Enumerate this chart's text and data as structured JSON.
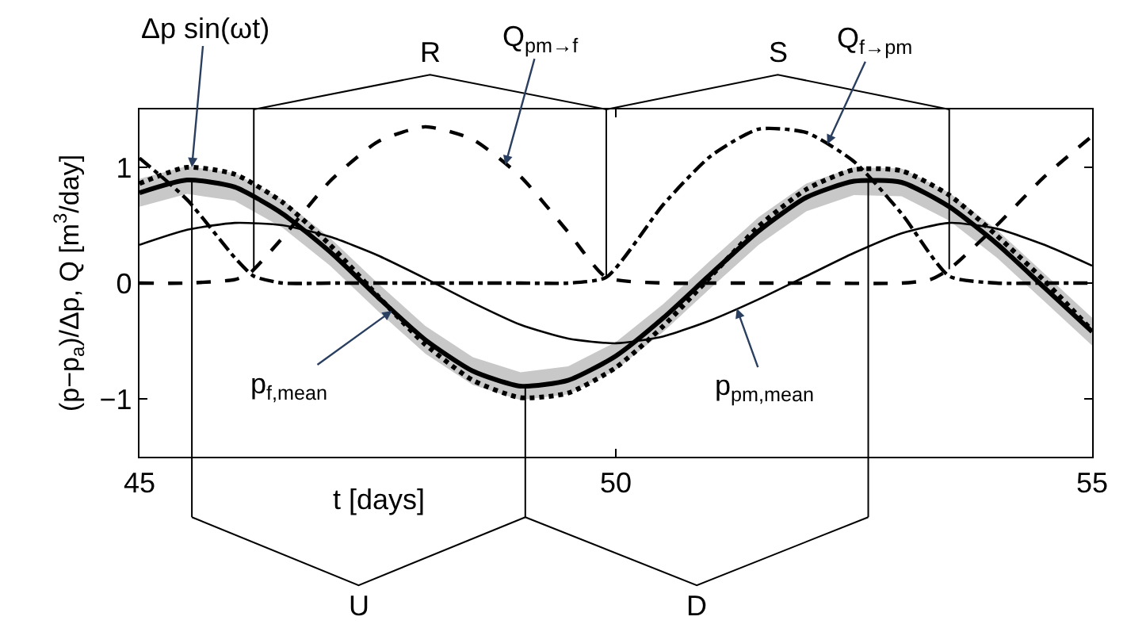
{
  "chart_data": {
    "type": "line",
    "xlabel": "t [days]",
    "ylabel": "(p−p$_{a}$)/Δp, Q [m$^{3}$/day]",
    "xlim": [
      45,
      55
    ],
    "ylim": [
      -1.5,
      1.5
    ],
    "xticks": [
      45,
      50,
      55
    ],
    "yticks": [
      -1,
      0,
      1
    ],
    "x": [
      45,
      45.5,
      46,
      46.5,
      47,
      47.5,
      48,
      48.5,
      49,
      49.5,
      50,
      50.5,
      51,
      51.5,
      52,
      52.5,
      53,
      53.5,
      54,
      54.5,
      55
    ],
    "series": [
      {
        "color": "#000000",
        "line_style": "dotted",
        "values": [
          0.86,
          1.0,
          0.94,
          0.7,
          0.33,
          -0.11,
          -0.53,
          -0.84,
          -0.99,
          -0.95,
          -0.73,
          -0.37,
          0.06,
          0.49,
          0.81,
          0.98,
          0.97,
          0.76,
          0.41,
          0.02,
          -0.41
        ]
      },
      {
        "color": "#000000",
        "line_style": "solid",
        "values": [
          0.78,
          0.89,
          0.83,
          0.6,
          0.27,
          -0.12,
          -0.49,
          -0.76,
          -0.89,
          -0.84,
          -0.63,
          -0.3,
          0.08,
          0.45,
          0.74,
          0.88,
          0.87,
          0.66,
          0.34,
          -0.04,
          -0.42
        ],
        "lower": [
          0.66,
          0.77,
          0.71,
          0.48,
          0.15,
          -0.24,
          -0.61,
          -0.88,
          -1.01,
          -0.96,
          -0.75,
          -0.42,
          -0.04,
          0.33,
          0.62,
          0.76,
          0.75,
          0.54,
          0.22,
          -0.16,
          -0.54
        ],
        "upper": [
          0.9,
          1.01,
          0.95,
          0.72,
          0.39,
          0.0,
          -0.37,
          -0.64,
          -0.77,
          -0.72,
          -0.51,
          -0.18,
          0.2,
          0.57,
          0.86,
          1.0,
          0.99,
          0.78,
          0.46,
          0.08,
          -0.3
        ]
      },
      {
        "color": "#000000",
        "line_style": "solid",
        "values": [
          0.33,
          0.46,
          0.52,
          0.5,
          0.4,
          0.24,
          0.04,
          -0.17,
          -0.36,
          -0.48,
          -0.52,
          -0.46,
          -0.32,
          -0.14,
          0.06,
          0.26,
          0.43,
          0.52,
          0.47,
          0.33,
          0.15
        ]
      },
      {
        "color": "#000000",
        "line_style": "dashed",
        "x": [
          45,
          45.5,
          46,
          46.15,
          46.5,
          47,
          47.5,
          48,
          48.5,
          49,
          49.5,
          49.9,
          50.5,
          51,
          52,
          53,
          53.3,
          53.5,
          54,
          54.5,
          55
        ],
        "values": [
          0,
          0,
          0.03,
          0.08,
          0.39,
          0.88,
          1.22,
          1.35,
          1.24,
          0.92,
          0.44,
          0.05,
          0,
          0,
          0,
          0,
          0.03,
          0.12,
          0.5,
          0.92,
          1.27
        ]
      },
      {
        "color": "#000000",
        "line_style": "dashdot",
        "x": [
          45,
          45.5,
          46,
          46.2,
          46.5,
          47,
          48,
          49,
          49.5,
          49.9,
          50.5,
          51,
          51.5,
          52,
          52.5,
          53,
          53.5,
          54,
          54.5,
          55
        ],
        "values": [
          1.08,
          0.72,
          0.22,
          0.06,
          0,
          0,
          0,
          0,
          0,
          0.05,
          0.68,
          1.1,
          1.33,
          1.3,
          1.05,
          0.6,
          0.06,
          0,
          0,
          0
        ]
      }
    ],
    "ref_lines": [
      {
        "axis": "x",
        "value": 46.2
      },
      {
        "axis": "x",
        "value": 49.9
      },
      {
        "axis": "x",
        "value": 53.5
      },
      {
        "axis": "x",
        "value": 45.55
      },
      {
        "axis": "x",
        "value": 49.05
      },
      {
        "axis": "x",
        "value": 52.65
      }
    ],
    "annotations": [
      {
        "text": "Δp sin(ωt)",
        "x": 45.55,
        "y": 1.0
      },
      {
        "text": "Q$_{pm→f}$",
        "x": 48.84,
        "y": 1.02
      },
      {
        "text": "Q$_{f→pm}$",
        "x": 52.22,
        "y": 1.2
      },
      {
        "text": "p$_{f,mean}$",
        "x": 47.65,
        "y": -0.24
      },
      {
        "text": "p$_{pm,mean}$",
        "x": 51.27,
        "y": -0.22
      },
      "R",
      "S",
      "U",
      "D"
    ]
  }
}
